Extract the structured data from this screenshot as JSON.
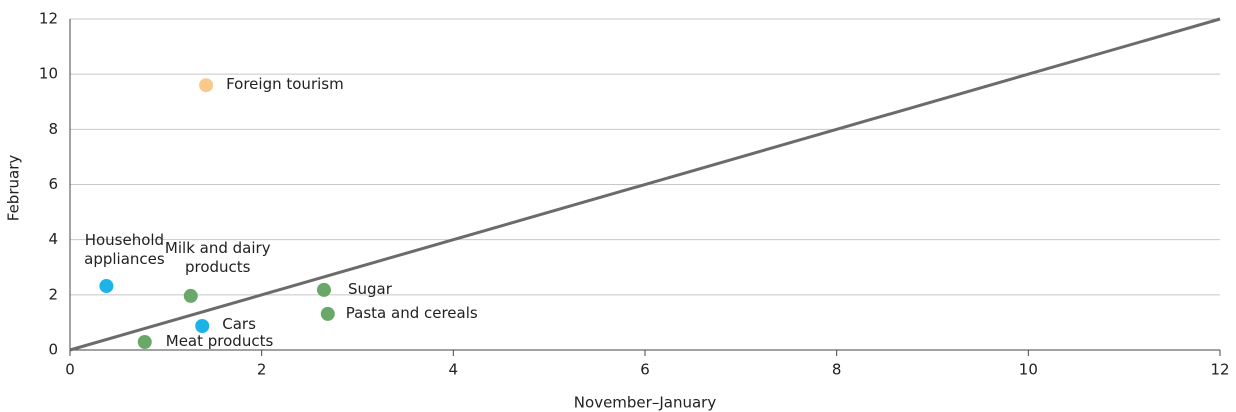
{
  "chart_data": {
    "type": "scatter",
    "xlabel": "November–January",
    "ylabel": "February",
    "labels": [
      "Foreign tourism",
      "Household appliances",
      "Milk and dairy products",
      "Sugar",
      "Pasta and cereals",
      "Cars",
      "Meat products"
    ],
    "x": [
      1.42,
      0.38,
      1.26,
      2.65,
      2.69,
      1.38,
      0.78
    ],
    "values": [
      9.6,
      2.32,
      1.96,
      2.18,
      1.31,
      0.87,
      0.29
    ],
    "colors": [
      "#f9c98b",
      "#1cb4e8",
      "#6aa86a",
      "#6aa86a",
      "#6aa86a",
      "#1cb4e8",
      "#6aa86a"
    ],
    "xlim": [
      0,
      12
    ],
    "ylim": [
      0,
      12
    ],
    "xticks": [
      0,
      2,
      4,
      6,
      8,
      10,
      12
    ],
    "yticks": [
      0,
      2,
      4,
      6,
      8,
      10,
      12
    ],
    "grid": true,
    "diagonal_line": true
  }
}
